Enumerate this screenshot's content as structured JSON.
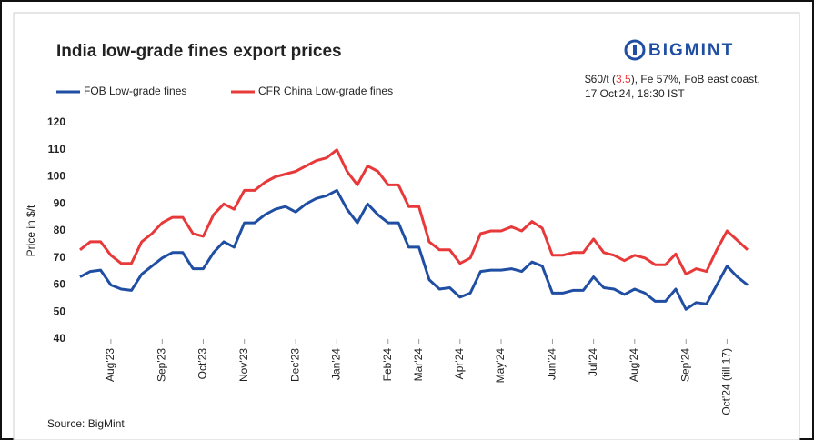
{
  "chart_data": {
    "type": "line",
    "title": "India low-grade fines export prices",
    "logo": "BIGMINT",
    "annotation": [
      "$60/t (",
      "3.5",
      "), Fe 57%, FoB east coast,",
      "17 Oct'24, 18:30 IST"
    ],
    "source": "Source: BigMint",
    "y_label": "Price in $/t",
    "categories": [
      null,
      null,
      null,
      "Aug'23",
      null,
      null,
      null,
      null,
      "Sep'23",
      null,
      null,
      null,
      "Oct'23",
      null,
      null,
      null,
      "Nov'23",
      null,
      null,
      null,
      null,
      "Dec'23",
      null,
      null,
      null,
      "Jan'24",
      null,
      null,
      null,
      null,
      "Feb'24",
      null,
      null,
      "Mar'24",
      null,
      null,
      null,
      "Apr'24",
      null,
      null,
      null,
      "May'24",
      null,
      null,
      null,
      null,
      "Jun'24",
      null,
      null,
      null,
      "Jul'24",
      null,
      null,
      null,
      "Aug'24",
      null,
      null,
      null,
      null,
      "Sep'24",
      null,
      null,
      null,
      "Oct'24 (till 17)",
      null,
      null
    ],
    "series": [
      {
        "name": "FOB Low-grade fines",
        "color": "#1f4ea3",
        "values": [
          63,
          65,
          65.5,
          60,
          58.5,
          58,
          64,
          67,
          70,
          72,
          72,
          66,
          66,
          72,
          76,
          74,
          83,
          83,
          86,
          88,
          89,
          87,
          90,
          92,
          93,
          95,
          88,
          83,
          90,
          86,
          83,
          83,
          74,
          74,
          62,
          58.5,
          59,
          55.5,
          57,
          65,
          65.5,
          65.5,
          66,
          65,
          68.5,
          67,
          57,
          57,
          58,
          58,
          63,
          59,
          58.5,
          56.5,
          58.5,
          57,
          54,
          54,
          58.5,
          51,
          53.5,
          53,
          60,
          67,
          63,
          60
        ]
      },
      {
        "name": "CFR China Low-grade fines",
        "color": "#e8393a",
        "values": [
          73,
          76,
          76,
          71,
          68,
          68,
          76,
          79,
          83,
          85,
          85,
          79,
          78,
          86,
          90,
          88,
          95,
          95,
          98,
          100,
          101,
          102,
          104,
          106,
          107,
          110,
          102,
          97,
          104,
          102,
          97,
          97,
          89,
          89,
          76,
          73,
          73,
          68,
          70,
          79,
          80,
          80,
          81.5,
          80,
          83.5,
          81,
          71,
          71,
          72,
          72,
          77,
          72,
          71,
          69,
          71,
          70,
          67.5,
          67.5,
          71.5,
          64,
          66,
          65,
          73,
          80,
          76.5,
          73
        ]
      }
    ],
    "ylim": [
      40,
      120
    ],
    "yticks": [
      40,
      50,
      60,
      70,
      80,
      90,
      100,
      110,
      120
    ],
    "grid": false
  }
}
